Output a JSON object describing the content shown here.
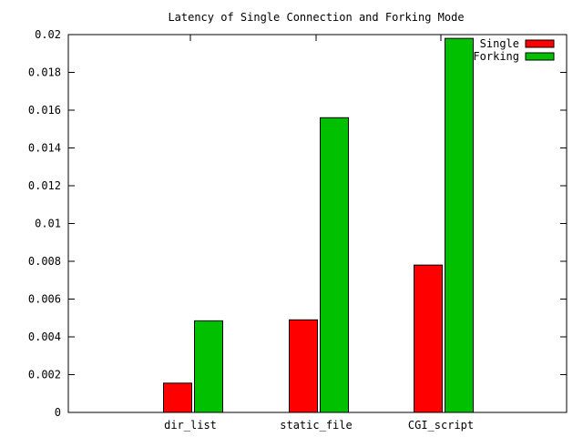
{
  "chart_data": {
    "type": "bar",
    "title": "Latency of Single Connection and Forking Mode",
    "xlabel": "",
    "ylabel": "",
    "ylim": [
      0,
      0.02
    ],
    "yticks": [
      "0",
      "0.002",
      "0.004",
      "0.006",
      "0.008",
      "0.01",
      "0.012",
      "0.014",
      "0.016",
      "0.018",
      "0.02"
    ],
    "categories": [
      "dir_list",
      "static_file",
      "CGI_script"
    ],
    "series": [
      {
        "name": "Single",
        "color": "#ff0000",
        "values": [
          0.00155,
          0.0049,
          0.0078
        ]
      },
      {
        "name": "Forking",
        "color": "#00c000",
        "values": [
          0.00485,
          0.0156,
          0.0198
        ]
      }
    ],
    "grid": false,
    "legend": "top-right"
  }
}
